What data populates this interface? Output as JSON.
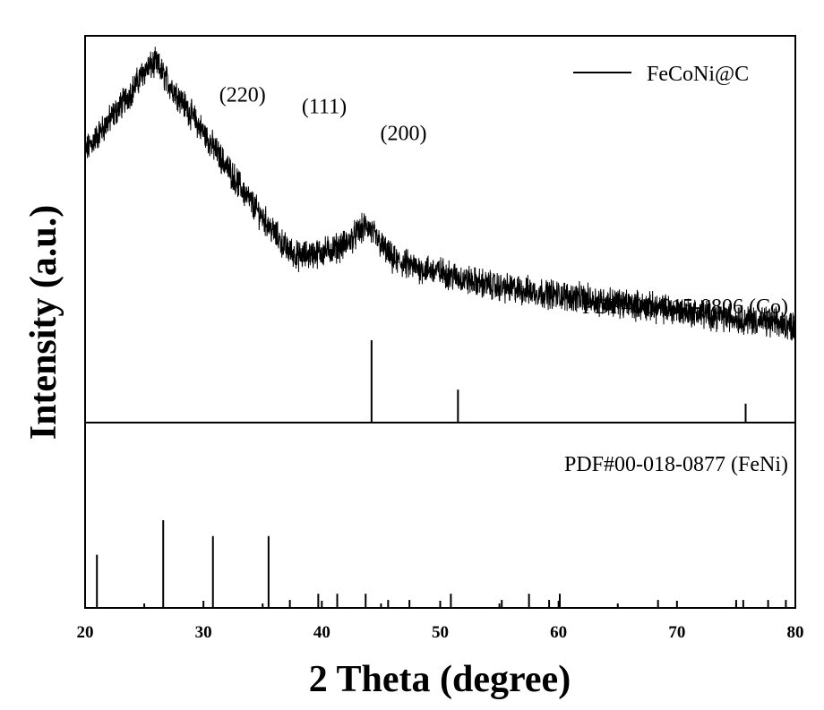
{
  "chart_data": {
    "type": "line",
    "xlabel": "2 Theta (degree)",
    "ylabel": "Intensity (a.u.)",
    "xlim": [
      20,
      80
    ],
    "xticks": [
      20,
      30,
      40,
      50,
      60,
      70,
      80
    ],
    "grid": false,
    "legend_placement": "top-right",
    "series": [
      {
        "name": "FeCoNi@C",
        "color": "#000000",
        "profile_x": [
          20,
          22,
          24,
          25,
          26,
          27,
          28,
          30,
          32,
          34,
          36,
          37,
          38,
          40,
          42,
          43,
          43.8,
          45,
          46,
          48,
          50,
          52,
          55,
          60,
          65,
          70,
          75,
          80
        ],
        "profile_y": [
          0.7,
          0.78,
          0.86,
          0.91,
          0.93,
          0.88,
          0.84,
          0.75,
          0.66,
          0.57,
          0.49,
          0.45,
          0.43,
          0.44,
          0.46,
          0.49,
          0.51,
          0.46,
          0.42,
          0.4,
          0.39,
          0.37,
          0.35,
          0.33,
          0.31,
          0.29,
          0.27,
          0.25
        ],
        "noise_amplitude": 0.03
      }
    ],
    "peak_labels": [
      {
        "text": "(220)",
        "x": 33.3,
        "y": 0.83
      },
      {
        "text": "(111)",
        "x": 40.2,
        "y": 0.8
      },
      {
        "text": "(200)",
        "x": 46.9,
        "y": 0.73
      }
    ],
    "references": [
      {
        "label": "PDF#00-015-0806 (Co)",
        "color": "#000000",
        "lines": [
          {
            "x": 44.2,
            "h": 1.0
          },
          {
            "x": 51.5,
            "h": 0.4
          },
          {
            "x": 75.8,
            "h": 0.23
          }
        ]
      },
      {
        "label": "PDF#00-018-0877 (FeNi)",
        "color": "#000000",
        "lines": [
          {
            "x": 21.0,
            "h": 0.6
          },
          {
            "x": 26.6,
            "h": 0.99
          },
          {
            "x": 30.8,
            "h": 0.81
          },
          {
            "x": 35.5,
            "h": 0.81
          },
          {
            "x": 37.3,
            "h": 0.09
          },
          {
            "x": 39.7,
            "h": 0.16
          },
          {
            "x": 41.3,
            "h": 0.16
          },
          {
            "x": 43.7,
            "h": 0.16
          },
          {
            "x": 45.6,
            "h": 0.09
          },
          {
            "x": 47.4,
            "h": 0.09
          },
          {
            "x": 50.9,
            "h": 0.16
          },
          {
            "x": 55.2,
            "h": 0.09
          },
          {
            "x": 57.5,
            "h": 0.16
          },
          {
            "x": 59.2,
            "h": 0.09
          },
          {
            "x": 60.1,
            "h": 0.16
          },
          {
            "x": 68.4,
            "h": 0.09
          },
          {
            "x": 75.0,
            "h": 0.09
          },
          {
            "x": 75.6,
            "h": 0.09
          },
          {
            "x": 77.7,
            "h": 0.09
          },
          {
            "x": 79.2,
            "h": 0.09
          }
        ]
      }
    ]
  }
}
